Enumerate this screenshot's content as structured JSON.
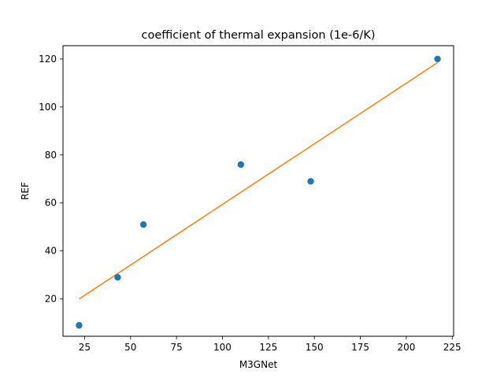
{
  "chart_data": {
    "type": "scatter",
    "title": "coefficient of thermal expansion (1e-6/K)",
    "xlabel": "M3GNet",
    "ylabel": "REF",
    "xlim": [
      13.25,
      225.75
    ],
    "ylim": [
      4.45,
      125.55
    ],
    "xticks": [
      25,
      50,
      75,
      100,
      125,
      150,
      175,
      200,
      225
    ],
    "yticks": [
      20,
      40,
      60,
      80,
      100,
      120
    ],
    "grid": false,
    "series": [
      {
        "kind": "scatter",
        "color": "#1f77b4",
        "x": [
          22,
          43,
          57,
          110,
          148,
          217
        ],
        "y": [
          9,
          29,
          51,
          76,
          69,
          120
        ]
      },
      {
        "kind": "line",
        "color": "#ff7f0e",
        "x": [
          22,
          217
        ],
        "y": [
          20,
          118.5
        ]
      }
    ]
  }
}
